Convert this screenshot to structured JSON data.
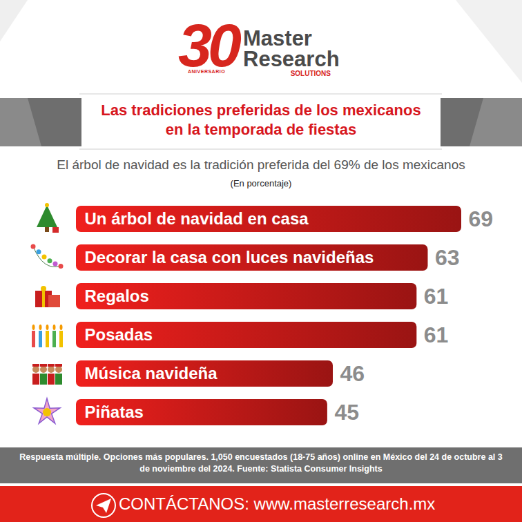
{
  "header": {
    "logo_number": "30",
    "logo_badge": "ANIVERSARIO",
    "brand_line1": "Master",
    "brand_line2": "Research",
    "brand_tag": "SOLUTIONS"
  },
  "chart_data": {
    "type": "bar",
    "orientation": "horizontal",
    "title": "Las tradiciones preferidas de los mexicanos en la temporada de fiestas",
    "subtitle": "El árbol de navidad es la tradición preferida del 69% de los mexicanos",
    "units": "(En porcentaje)",
    "categories": [
      "Un árbol de navidad en casa",
      "Decorar la casa con luces navideñas",
      "Regalos",
      "Posadas",
      "Música navideña",
      "Piñatas"
    ],
    "values": [
      69,
      63,
      61,
      61,
      46,
      45
    ],
    "color": "#d41c1a",
    "xlim": [
      0,
      69
    ],
    "xticks": [],
    "data_labels": true,
    "tick_labels": false,
    "grid": false
  },
  "footer": {
    "note": "Respuesta múltiple. Opciones más populares. 1,050 encuestados (18-75 años) online en México del 24 de octubre al 3 de noviembre del 2024. Fuente: Statista Consumer Insights",
    "contact": "CONTÁCTANOS: www.masterresearch.mx"
  }
}
